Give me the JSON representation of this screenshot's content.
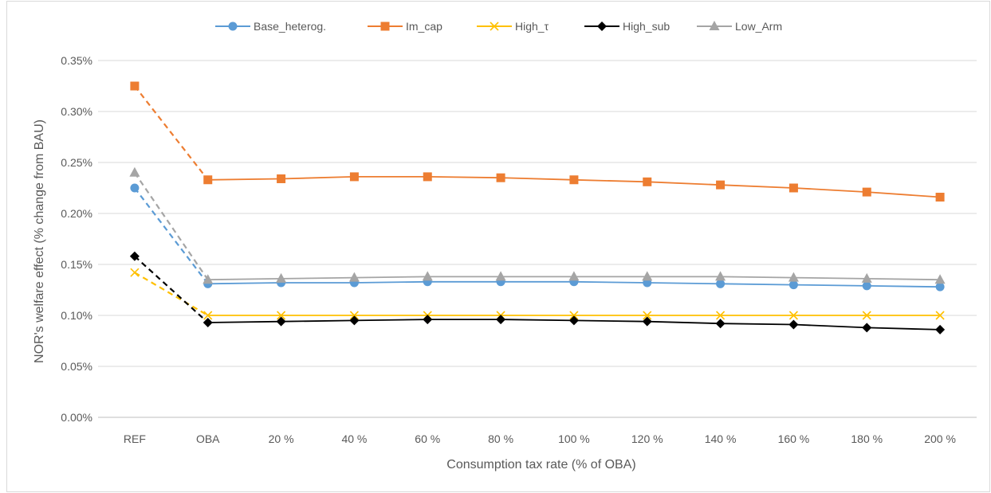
{
  "chart_data": {
    "type": "line",
    "categories": [
      "REF",
      "OBA",
      "20 %",
      "40 %",
      "60 %",
      "80 %",
      "100 %",
      "120 %",
      "140 %",
      "160 %",
      "180 %",
      "200 %"
    ],
    "xlabel": "Consumption tax rate (% of OBA)",
    "ylabel": "NOR's welfare effect (% change from BAU)",
    "ylim": [
      0,
      0.35
    ],
    "yticks": [
      "0.00%",
      "0.05%",
      "0.10%",
      "0.15%",
      "0.20%",
      "0.25%",
      "0.30%",
      "0.35%"
    ],
    "grid": "horizontal",
    "legend_position": "top",
    "ref_segment_style": "dashed",
    "series": [
      {
        "name": "Base_heterog.",
        "color": "#5B9BD5",
        "marker": "circle",
        "values": [
          0.225,
          0.131,
          0.132,
          0.132,
          0.133,
          0.133,
          0.133,
          0.132,
          0.131,
          0.13,
          0.129,
          0.128
        ]
      },
      {
        "name": "Im_cap",
        "color": "#ED7D31",
        "marker": "square",
        "values": [
          0.325,
          0.233,
          0.234,
          0.236,
          0.236,
          0.235,
          0.233,
          0.231,
          0.228,
          0.225,
          0.221,
          0.216
        ]
      },
      {
        "name": "High_τ",
        "color": "#FFC000",
        "marker": "x",
        "values": [
          0.142,
          0.1,
          0.1,
          0.1,
          0.1,
          0.1,
          0.1,
          0.1,
          0.1,
          0.1,
          0.1,
          0.1
        ]
      },
      {
        "name": "High_sub",
        "color": "#000000",
        "marker": "diamond",
        "values": [
          0.158,
          0.093,
          0.094,
          0.095,
          0.096,
          0.096,
          0.095,
          0.094,
          0.092,
          0.091,
          0.088,
          0.086
        ]
      },
      {
        "name": "Low_Arm",
        "color": "#A5A5A5",
        "marker": "triangle",
        "values": [
          0.24,
          0.135,
          0.136,
          0.137,
          0.138,
          0.138,
          0.138,
          0.138,
          0.138,
          0.137,
          0.136,
          0.135
        ]
      }
    ]
  }
}
